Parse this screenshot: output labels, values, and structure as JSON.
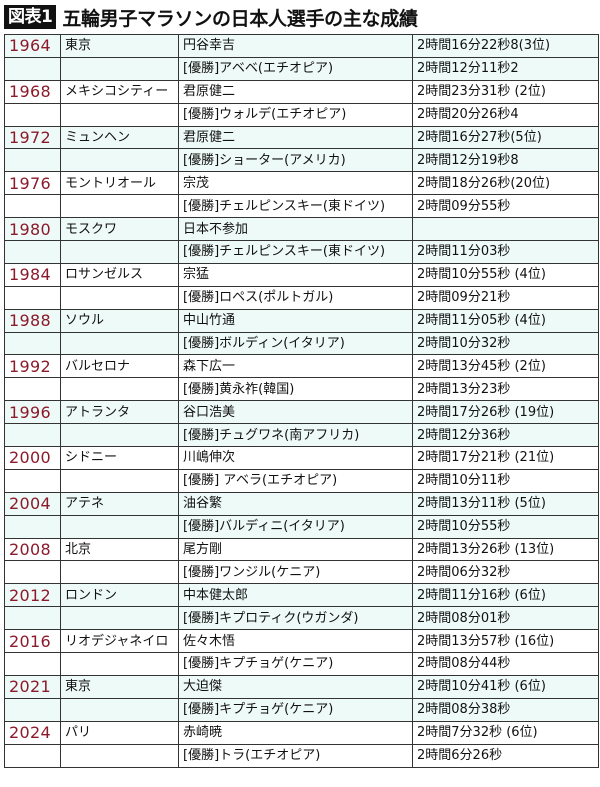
{
  "header": {
    "badge": "図表1",
    "title": "五輪男子マラソンの日本人選手の主な成績"
  },
  "colors": {
    "year_text": "#8b1a2a",
    "row_mint": "#eefaf7",
    "row_white": "#ffffff",
    "badge_bg": "#111111"
  },
  "table": {
    "groups": [
      {
        "year": "1964",
        "city": "東京",
        "japanese": "円谷幸吉",
        "japanese_time": "2時間16分22秒8(3位)",
        "winner": "[優勝]アベベ(エチオピア)",
        "winner_time": "2時間12分11秒2"
      },
      {
        "year": "1968",
        "city": "メキシコシティー",
        "japanese": "君原健二",
        "japanese_time": "2時間23分31秒 (2位)",
        "winner": "[優勝]ウォルデ(エチオピア)",
        "winner_time": "2時間20分26秒4"
      },
      {
        "year": "1972",
        "city": "ミュンヘン",
        "japanese": "君原健二",
        "japanese_time": "2時間16分27秒(5位)",
        "winner": "[優勝]ショーター(アメリカ)",
        "winner_time": "2時間12分19秒8"
      },
      {
        "year": "1976",
        "city": "モントリオール",
        "japanese": "宗茂",
        "japanese_time": "2時間18分26秒(20位)",
        "winner": "[優勝]チェルピンスキー(東ドイツ)",
        "winner_time": "2時間09分55秒"
      },
      {
        "year": "1980",
        "city": "モスクワ",
        "japanese": "日本不参加",
        "japanese_time": "",
        "winner": "[優勝]チェルピンスキー(東ドイツ)",
        "winner_time": "2時間11分03秒"
      },
      {
        "year": "1984",
        "city": "ロサンゼルス",
        "japanese": "宗猛",
        "japanese_time": "2時間10分55秒 (4位)",
        "winner": "[優勝]ロペス(ポルトガル)",
        "winner_time": "2時間09分21秒"
      },
      {
        "year": "1988",
        "city": "ソウル",
        "japanese": "中山竹通",
        "japanese_time": "2時間11分05秒 (4位)",
        "winner": "[優勝]ボルディン(イタリア)",
        "winner_time": "2時間10分32秒"
      },
      {
        "year": "1992",
        "city": "バルセロナ",
        "japanese": "森下広一",
        "japanese_time": "2時間13分45秒 (2位)",
        "winner": "[優勝]黄永祚(韓国)",
        "winner_time": "2時間13分23秒"
      },
      {
        "year": "1996",
        "city": "アトランタ",
        "japanese": "谷口浩美",
        "japanese_time": "2時間17分26秒 (19位)",
        "winner": "[優勝]チュグワネ(南アフリカ)",
        "winner_time": "2時間12分36秒"
      },
      {
        "year": "2000",
        "city": "シドニー",
        "japanese": "川嶋伸次",
        "japanese_time": "2時間17分21秒 (21位)",
        "winner": "[優勝] アベラ(エチオピア)",
        "winner_time": "2時間10分11秒"
      },
      {
        "year": "2004",
        "city": "アテネ",
        "japanese": "油谷繁",
        "japanese_time": "2時間13分11秒 (5位)",
        "winner": "[優勝]バルディニ(イタリア)",
        "winner_time": "2時間10分55秒"
      },
      {
        "year": "2008",
        "city": "北京",
        "japanese": "尾方剛",
        "japanese_time": "2時間13分26秒 (13位)",
        "winner": "[優勝]ワンジル(ケニア)",
        "winner_time": "2時間06分32秒"
      },
      {
        "year": "2012",
        "city": "ロンドン",
        "japanese": "中本健太郎",
        "japanese_time": "2時間11分16秒 (6位)",
        "winner": "[優勝]キプロティク(ウガンダ)",
        "winner_time": "2時間08分01秒"
      },
      {
        "year": "2016",
        "city": "リオデジャネイロ",
        "japanese": "佐々木悟",
        "japanese_time": "2時間13分57秒 (16位)",
        "winner": "[優勝]キプチョゲ(ケニア)",
        "winner_time": "2時間08分44秒"
      },
      {
        "year": "2021",
        "city": "東京",
        "japanese": "大迫傑",
        "japanese_time": "2時間10分41秒 (6位)",
        "winner": "[優勝]キプチョゲ(ケニア)",
        "winner_time": "2時間08分38秒"
      },
      {
        "year": "2024",
        "city": "パリ",
        "japanese": "赤崎暁",
        "japanese_time": "2時間7分32秒 (6位)",
        "winner": "[優勝]トラ(エチオピア)",
        "winner_time": "2時間6分26秒"
      }
    ]
  }
}
